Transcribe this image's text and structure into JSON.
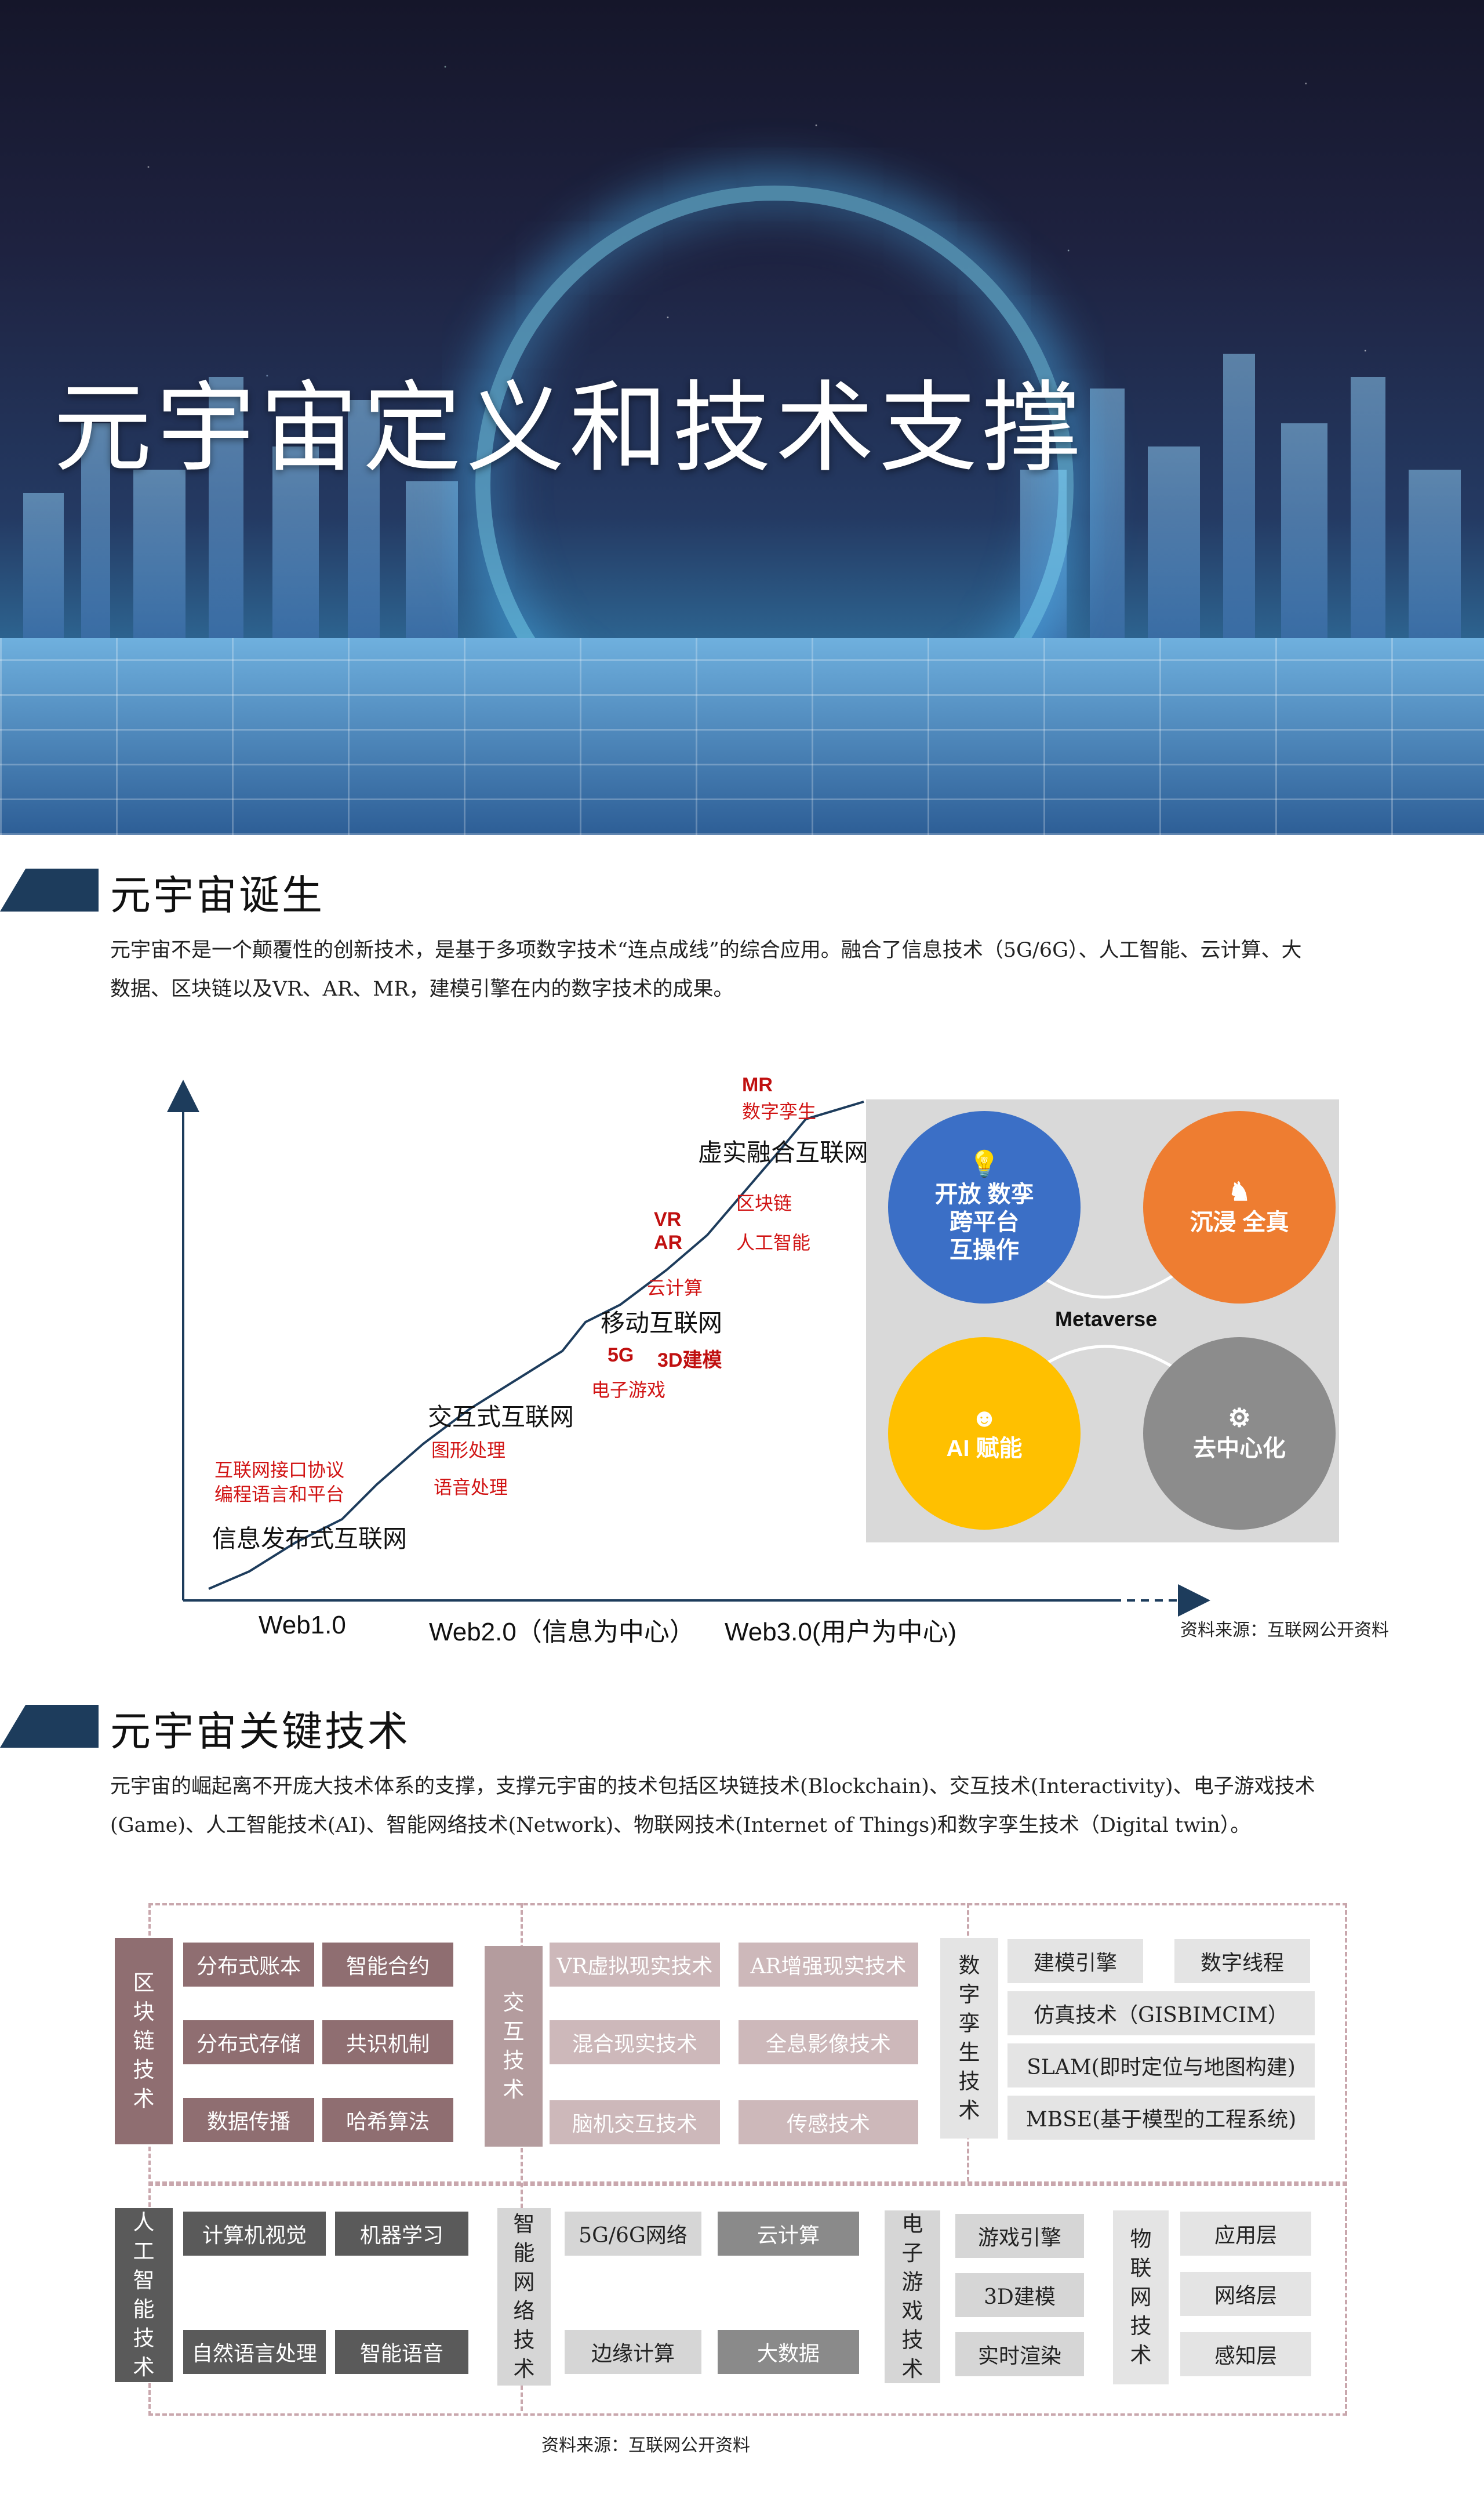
{
  "banner": {
    "title": "元宇宙定义和技术支撑"
  },
  "section1": {
    "title": "元宇宙诞生",
    "paragraph_line1": "元宇宙不是一个颠覆性的创新技术，是基于多项数字技术“连点成线”的综合应用。融合了信息技术（5G/6G）、人工智能、云计算、大",
    "paragraph_line2": "数据、区块链以及VR、AR、MR，建模引擎在内的数字技术的成果。"
  },
  "chart_data": {
    "type": "line",
    "title": "",
    "x_labels": [
      "Web1.0",
      "Web2.0（信息为中心）",
      "Web3.0(用户为中心)"
    ],
    "stages": [
      "信息发布式互联网",
      "交互式互联网",
      "移动互联网",
      "虚实融合互联网"
    ],
    "annotations": {
      "web1": [
        "互联网接口协议",
        "编程语言和平台"
      ],
      "web2a": [
        "图形处理",
        "语音处理"
      ],
      "web2b": [
        "5G",
        "3D建模",
        "电子游戏",
        "云计算"
      ],
      "web3a": [
        "VR",
        "AR",
        "区块链",
        "人工智能"
      ],
      "web3b": [
        "MR",
        "数字孪生"
      ]
    },
    "metaverse": {
      "center": "Metaverse",
      "items": [
        {
          "label": "开放 数孪\n跨平台\n互操作",
          "color": "#3b6fc6",
          "icon": "lightbulb-icon"
        },
        {
          "label": "沉浸 全真",
          "color": "#ee7d31",
          "icon": "chess-knight-icon"
        },
        {
          "label": "AI 赋能",
          "color": "#ffc000",
          "icon": "brain-icon"
        },
        {
          "label": "去中心化",
          "color": "#8c8c8c",
          "icon": "gears-icon"
        }
      ]
    },
    "source": "资料来源：互联网公开资料"
  },
  "section2": {
    "title": "元宇宙关键技术",
    "paragraph_line1": "元宇宙的崛起离不开庞大技术体系的支撑，支撑元宇宙的技术包括区块链技术(Blockchain)、交互技术(Interactivity)、电子游戏技术",
    "paragraph_line2": "(Game)、人工智能技术(AI)、智能网络技术(Network)、物联网技术(Internet of Things)和数字孪生技术（Digital twin）。"
  },
  "tech": {
    "blockchain": {
      "label": "区块链技术",
      "items": [
        "分布式账本",
        "智能合约",
        "分布式存储",
        "共识机制",
        "数据传播",
        "哈希算法"
      ]
    },
    "interaction": {
      "label": "交互技术",
      "items": [
        "VR虚拟现实技术",
        "AR增强现实技术",
        "混合现实技术",
        "全息影像技术",
        "脑机交互技术",
        "传感技术"
      ]
    },
    "digital_twin": {
      "label": "数字孪生技术",
      "items": [
        "建模引擎",
        "数字线程",
        "仿真技术（GISBIMCIM）",
        "SLAM(即时定位与地图构建)",
        "MBSE(基于模型的工程系统)"
      ]
    },
    "ai": {
      "label": "人工智能技术",
      "items": [
        "计算机视觉",
        "机器学习",
        "自然语言处理",
        "智能语音"
      ]
    },
    "network": {
      "label": "智能网络技术",
      "items": [
        "5G/6G网络",
        "云计算",
        "边缘计算",
        "大数据"
      ]
    },
    "game": {
      "label": "电子游戏技术",
      "items": [
        "游戏引擎",
        "3D建模",
        "实时渲染"
      ]
    },
    "iot": {
      "label": "物联网技术",
      "items": [
        "应用层",
        "网络层",
        "感知层"
      ]
    },
    "source": "资料来源：互联网公开资料"
  }
}
